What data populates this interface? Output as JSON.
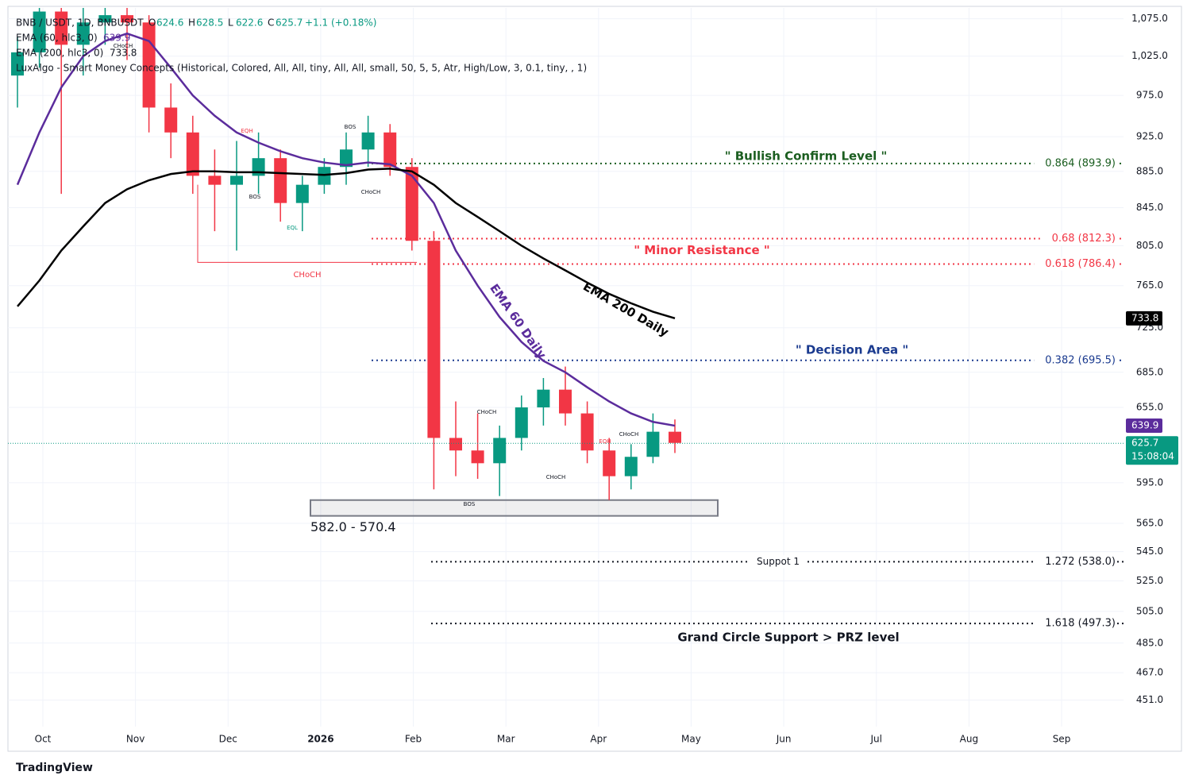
{
  "chart_data": {
    "type": "candlestick",
    "title": "BNB / USDT, 1D, BNBUSDT",
    "ohlc_labels": [
      {
        "key": "O",
        "value": 624.6
      },
      {
        "key": "H",
        "value": 628.5
      },
      {
        "key": "L",
        "value": 622.6
      },
      {
        "key": "C",
        "value": 625.7
      }
    ],
    "change": "+1.1 (+0.18%)",
    "study": "LuxAlgo - Smart Money Concepts (Historical, Colored, All, All, tiny, All, All, small, 50, 5, 5, Atr, High/Low, 3, 0.1, tiny, , 1)",
    "up_color": "#089981",
    "down_color": "#f23645",
    "candles": {
      "open": [
        1000,
        1030,
        1085,
        1040,
        1070,
        1080,
        1070,
        960,
        930,
        880,
        870,
        880,
        900,
        850,
        870,
        890,
        910,
        930,
        890,
        810,
        630,
        620,
        610,
        630,
        655,
        670,
        650,
        620,
        600,
        615,
        635
      ],
      "high": [
        1050,
        1090,
        1090,
        1090,
        1090,
        1090,
        1080,
        990,
        950,
        910,
        920,
        930,
        910,
        880,
        900,
        930,
        950,
        940,
        900,
        820,
        660,
        650,
        640,
        665,
        680,
        690,
        660,
        630,
        625,
        650,
        645
      ],
      "low": [
        960,
        1010,
        860,
        1000,
        1040,
        1020,
        930,
        900,
        860,
        820,
        800,
        860,
        830,
        820,
        860,
        870,
        890,
        880,
        800,
        590,
        600,
        598,
        585,
        620,
        640,
        640,
        610,
        582,
        590,
        610,
        618
      ],
      "close": [
        1030,
        1085,
        1040,
        1070,
        1080,
        1070,
        960,
        930,
        880,
        870,
        880,
        900,
        850,
        870,
        890,
        910,
        930,
        890,
        810,
        630,
        620,
        610,
        630,
        655,
        670,
        650,
        620,
        600,
        615,
        635,
        626
      ]
    },
    "indicators": [
      {
        "name": "EMA (60, hlc3, 0)",
        "value": 639.9,
        "color": "#5b2c9c",
        "label": "EMA 60 Daily",
        "values": [
          870,
          930,
          985,
          1025,
          1045,
          1055,
          1045,
          1010,
          975,
          950,
          930,
          918,
          908,
          900,
          895,
          892,
          895,
          893,
          880,
          850,
          800,
          765,
          735,
          712,
          695,
          685,
          672,
          660,
          650,
          643,
          639.9
        ]
      },
      {
        "name": "EMA (200, hlc3, 0)",
        "value": 733.8,
        "color": "#000000",
        "label": "EMA 200 Daily",
        "values": [
          745,
          770,
          800,
          825,
          850,
          865,
          875,
          882,
          885,
          885,
          884,
          884,
          883,
          882,
          881,
          883,
          887,
          888,
          885,
          870,
          850,
          835,
          820,
          805,
          792,
          780,
          768,
          757,
          748,
          740,
          733.8
        ]
      }
    ],
    "x_labels": [
      "Oct",
      "Nov",
      "Dec",
      "2026",
      "Feb",
      "Mar",
      "Apr",
      "May",
      "Jun",
      "Jul",
      "Aug",
      "Sep"
    ],
    "ylim": [
      436,
      1090
    ],
    "log_scale": true,
    "yticks": [
      {
        "value": 1075,
        "label": "1,075.0"
      },
      {
        "value": 1025,
        "label": "1,025.0"
      },
      {
        "value": 975,
        "label": "975.0"
      },
      {
        "value": 925,
        "label": "925.0"
      },
      {
        "value": 885,
        "label": "885.0"
      },
      {
        "value": 845,
        "label": "845.0"
      },
      {
        "value": 805,
        "label": "805.0"
      },
      {
        "value": 765,
        "label": "765.0"
      },
      {
        "value": 725,
        "label": "725.0"
      },
      {
        "value": 685,
        "label": "685.0"
      },
      {
        "value": 655,
        "label": "655.0"
      },
      {
        "value": 595,
        "label": "595.0"
      },
      {
        "value": 565,
        "label": "565.0"
      },
      {
        "value": 545,
        "label": "545.0"
      },
      {
        "value": 525,
        "label": "525.0"
      },
      {
        "value": 505,
        "label": "505.0"
      },
      {
        "value": 485,
        "label": "485.0"
      },
      {
        "value": 467,
        "label": "467.0"
      },
      {
        "value": 451,
        "label": "451.0"
      }
    ],
    "levels": [
      {
        "value": 893.9,
        "label": "0.864 (893.9)",
        "name": "\" Bullish Confirm Level \"",
        "color": "#1b5e20"
      },
      {
        "value": 812.3,
        "label": "0.68 (812.3)",
        "color": "#f23645"
      },
      {
        "value": 786.4,
        "label": "0.618 (786.4)",
        "name": "\" Minor Resistance \"",
        "color": "#f23645"
      },
      {
        "value": 695.5,
        "label": "0.382 (695.5)",
        "name": "\" Decision Area  \"",
        "color": "#1a3a8f"
      },
      {
        "value": 538.0,
        "label": "1.272 (538.0)",
        "name": "Suppot 1",
        "color": "#131722"
      },
      {
        "value": 497.3,
        "label": "1.618 (497.3)",
        "name": "Grand Circle Support > PRZ level",
        "color": "#131722"
      }
    ],
    "zone": {
      "label": "582.0 - 570.4",
      "high": 582.0,
      "low": 570.4
    },
    "smc_labels": [
      "CHoCH",
      "EQH",
      "BOS",
      "BOS",
      "CHoCH",
      "EQL",
      "CHoCH",
      "CHoCH",
      "BOS",
      "CHoCH",
      "EQH",
      "CHoCH"
    ],
    "last_price": {
      "value": 625.7,
      "countdown": "15:08:04"
    },
    "brand": "TradingView"
  }
}
